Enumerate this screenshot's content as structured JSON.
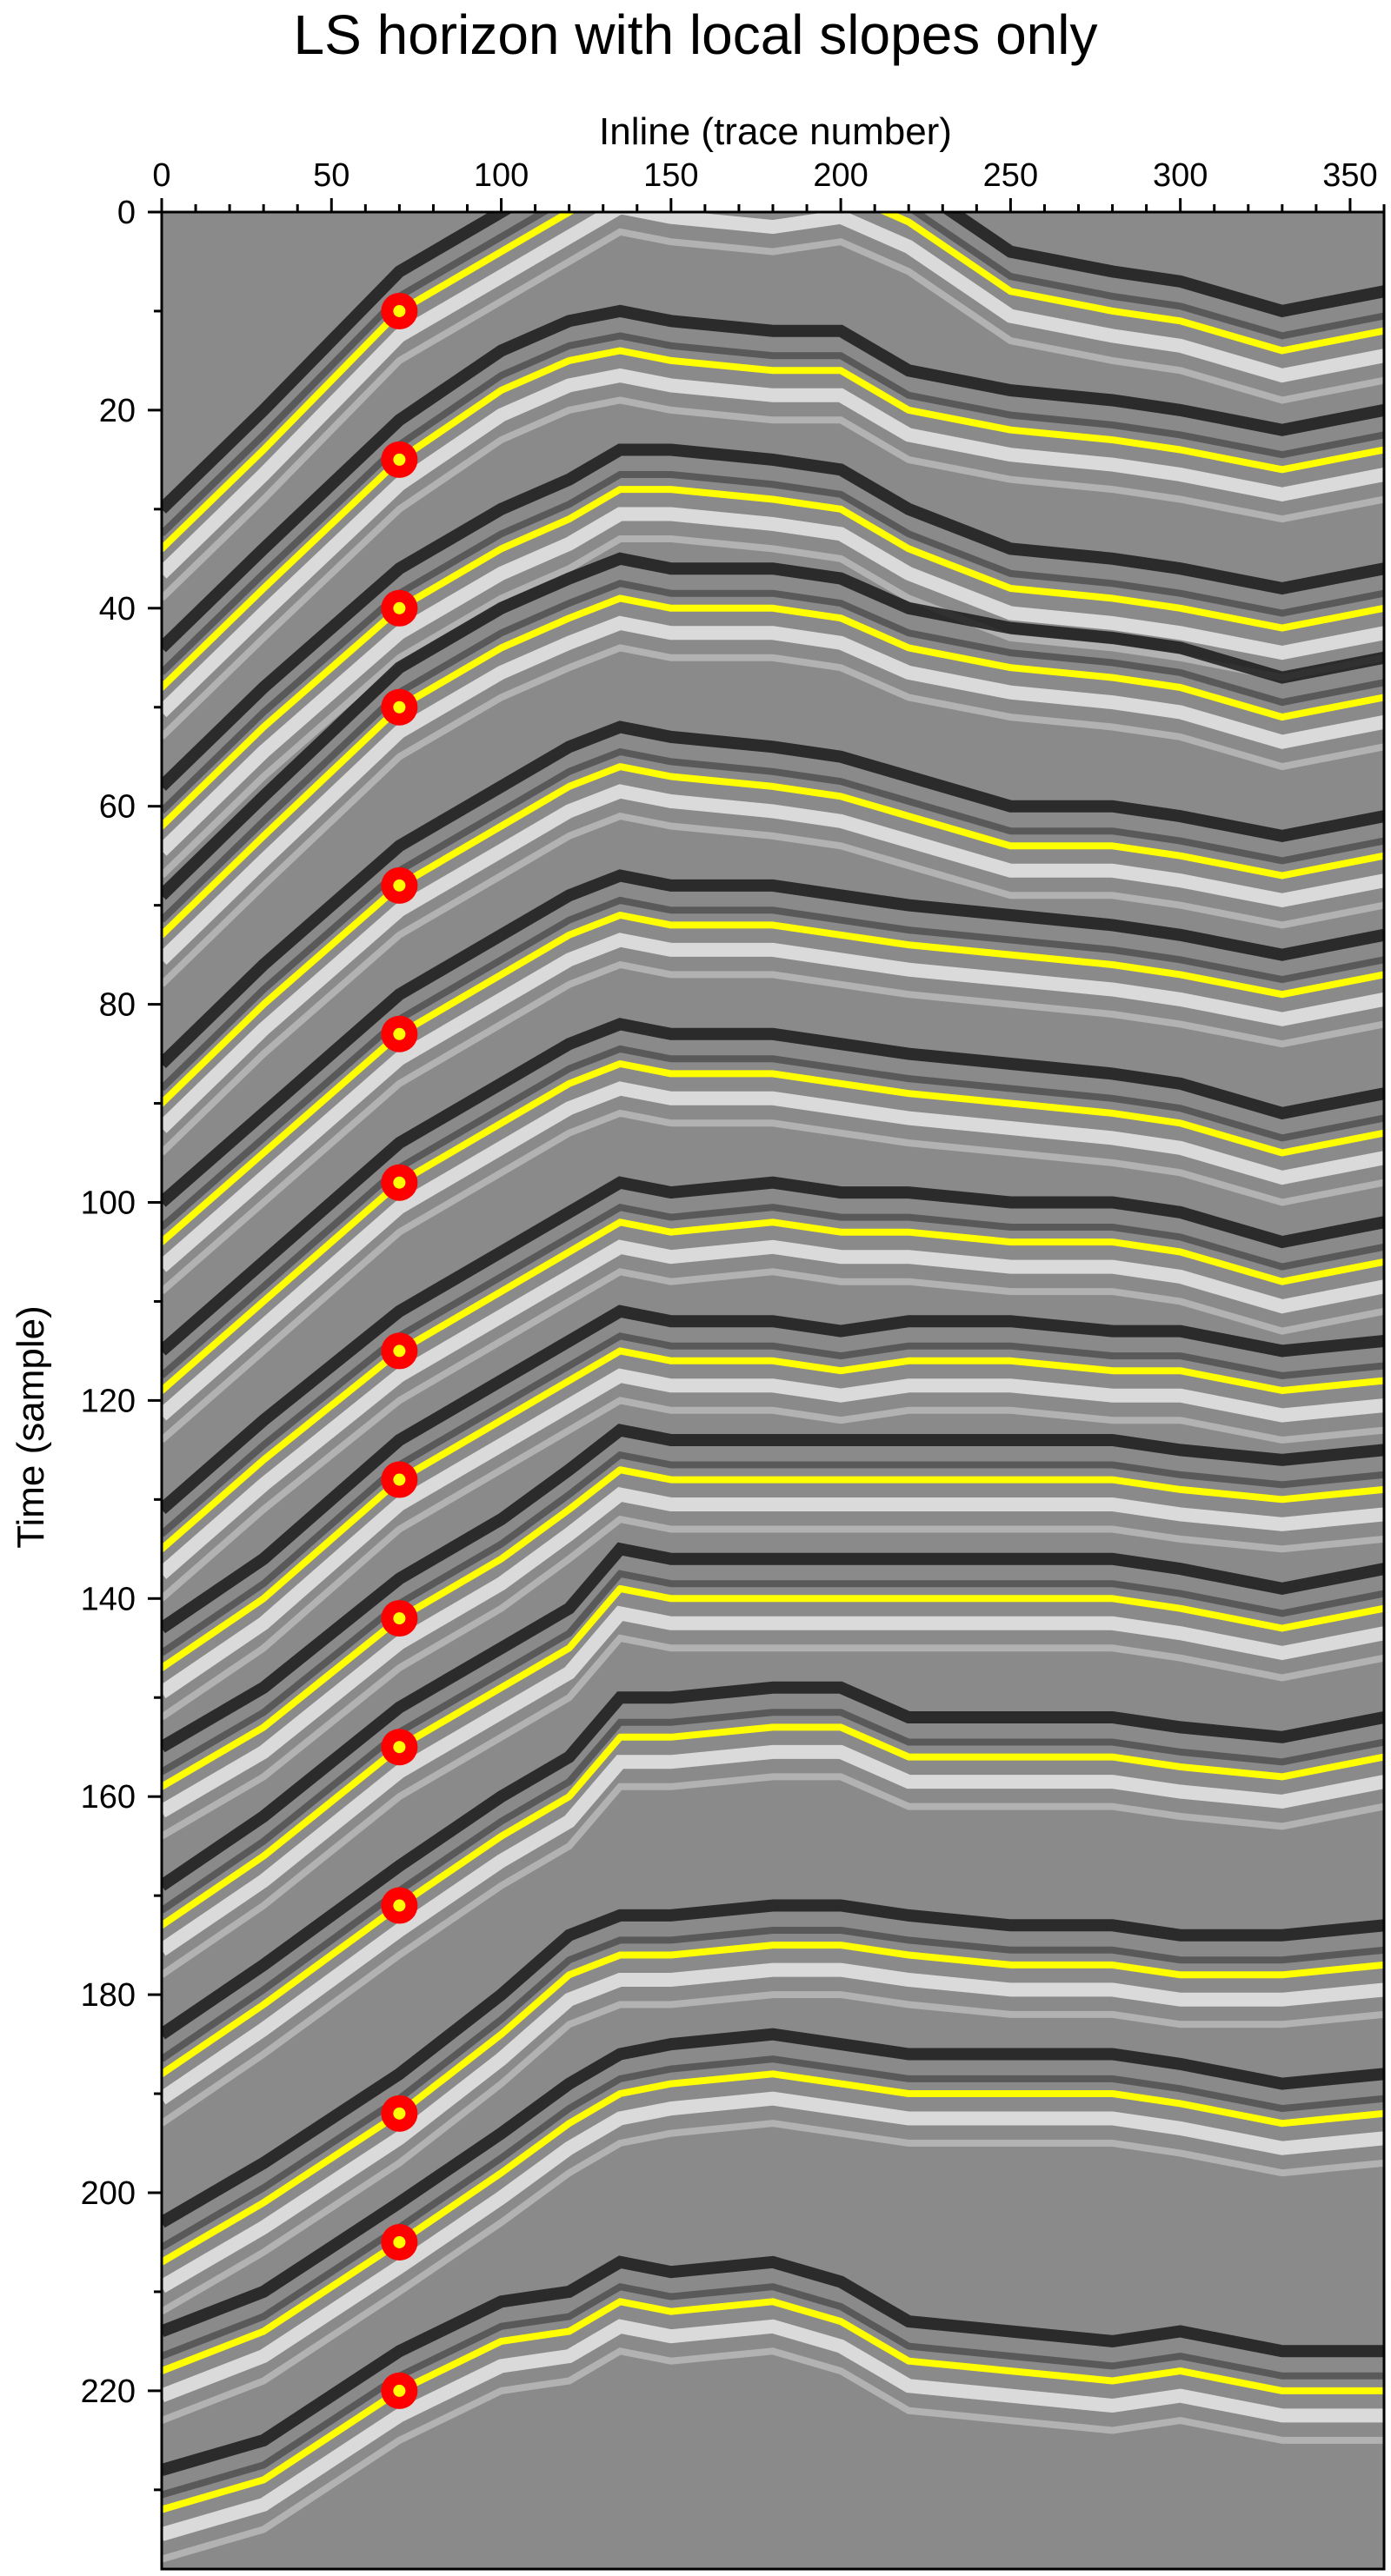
{
  "chart_data": {
    "type": "line",
    "title": "LS horizon with local slopes only",
    "xlabel": "Inline (trace number)",
    "ylabel": "Time (sample)",
    "xlim": [
      0,
      360
    ],
    "ylim": [
      0,
      238
    ],
    "x_axis_position": "top",
    "y_inverted": true,
    "grid": false,
    "legend": "none",
    "background": "grayscale seismic amplitude section",
    "x_ticks": [
      0,
      50,
      100,
      150,
      200,
      250,
      300,
      350
    ],
    "x_tick_labels": [
      "0",
      "50",
      "100",
      "150",
      "200",
      "250",
      "300",
      "350"
    ],
    "y_ticks": [
      0,
      20,
      40,
      60,
      80,
      100,
      120,
      140,
      160,
      180,
      200,
      220
    ],
    "y_tick_labels": [
      "0",
      "20",
      "40",
      "60",
      "80",
      "100",
      "120",
      "140",
      "160",
      "180",
      "200",
      "220"
    ],
    "colors": {
      "horizon": "#ffff00",
      "seed_outer": "#ff0000",
      "seed_inner": "#ffff00"
    },
    "seed_points": [
      {
        "x": 70,
        "y": 10
      },
      {
        "x": 70,
        "y": 25
      },
      {
        "x": 70,
        "y": 40
      },
      {
        "x": 70,
        "y": 50
      },
      {
        "x": 70,
        "y": 68
      },
      {
        "x": 70,
        "y": 83
      },
      {
        "x": 70,
        "y": 98
      },
      {
        "x": 70,
        "y": 115
      },
      {
        "x": 70,
        "y": 128
      },
      {
        "x": 70,
        "y": 142
      },
      {
        "x": 70,
        "y": 155
      },
      {
        "x": 70,
        "y": 171
      },
      {
        "x": 70,
        "y": 192
      },
      {
        "x": 70,
        "y": 205
      },
      {
        "x": 70,
        "y": 220
      }
    ],
    "horizon_x": [
      0,
      30,
      70,
      100,
      120,
      135,
      150,
      180,
      200,
      220,
      250,
      280,
      300,
      330,
      360
    ],
    "series": [
      {
        "values": [
          34,
          24,
          10,
          4,
          0,
          -3,
          -2,
          -1,
          -2,
          1,
          8,
          10,
          11,
          14,
          12
        ]
      },
      {
        "values": [
          48,
          38,
          25,
          18,
          15,
          14,
          15,
          16,
          16,
          20,
          22,
          23,
          24,
          26,
          24
        ]
      },
      {
        "values": [
          62,
          52,
          40,
          34,
          31,
          28,
          28,
          29,
          30,
          34,
          38,
          39,
          40,
          42,
          40
        ]
      },
      {
        "values": [
          73,
          63,
          50,
          44,
          41,
          39,
          40,
          40,
          41,
          44,
          46,
          47,
          48,
          51,
          49
        ]
      },
      {
        "values": [
          90,
          80,
          68,
          62,
          58,
          56,
          57,
          58,
          59,
          61,
          64,
          64,
          65,
          67,
          65
        ]
      },
      {
        "values": [
          104,
          95,
          83,
          77,
          73,
          71,
          72,
          72,
          73,
          74,
          75,
          76,
          77,
          79,
          77
        ]
      },
      {
        "values": [
          119,
          110,
          98,
          92,
          88,
          86,
          87,
          87,
          88,
          89,
          90,
          91,
          92,
          95,
          93
        ]
      },
      {
        "values": [
          135,
          126,
          115,
          109,
          105,
          102,
          103,
          102,
          103,
          103,
          104,
          104,
          105,
          108,
          106
        ]
      },
      {
        "values": [
          147,
          140,
          128,
          122,
          118,
          115,
          116,
          116,
          117,
          116,
          116,
          117,
          117,
          119,
          118
        ]
      },
      {
        "values": [
          159,
          153,
          142,
          136,
          131,
          127,
          128,
          128,
          128,
          128,
          128,
          128,
          129,
          130,
          129
        ]
      },
      {
        "values": [
          173,
          166,
          155,
          149,
          145,
          139,
          140,
          140,
          140,
          140,
          140,
          140,
          141,
          143,
          141
        ]
      },
      {
        "values": [
          188,
          181,
          171,
          164,
          160,
          154,
          154,
          153,
          153,
          156,
          156,
          156,
          157,
          158,
          156
        ]
      },
      {
        "values": [
          207,
          201,
          192,
          184,
          178,
          176,
          176,
          175,
          175,
          176,
          177,
          177,
          178,
          178,
          177
        ]
      },
      {
        "values": [
          218,
          214,
          205,
          198,
          193,
          190,
          189,
          188,
          189,
          190,
          190,
          190,
          191,
          193,
          192
        ]
      },
      {
        "values": [
          232,
          229,
          220,
          215,
          214,
          211,
          212,
          211,
          213,
          217,
          218,
          219,
          218,
          220,
          220
        ]
      }
    ]
  }
}
